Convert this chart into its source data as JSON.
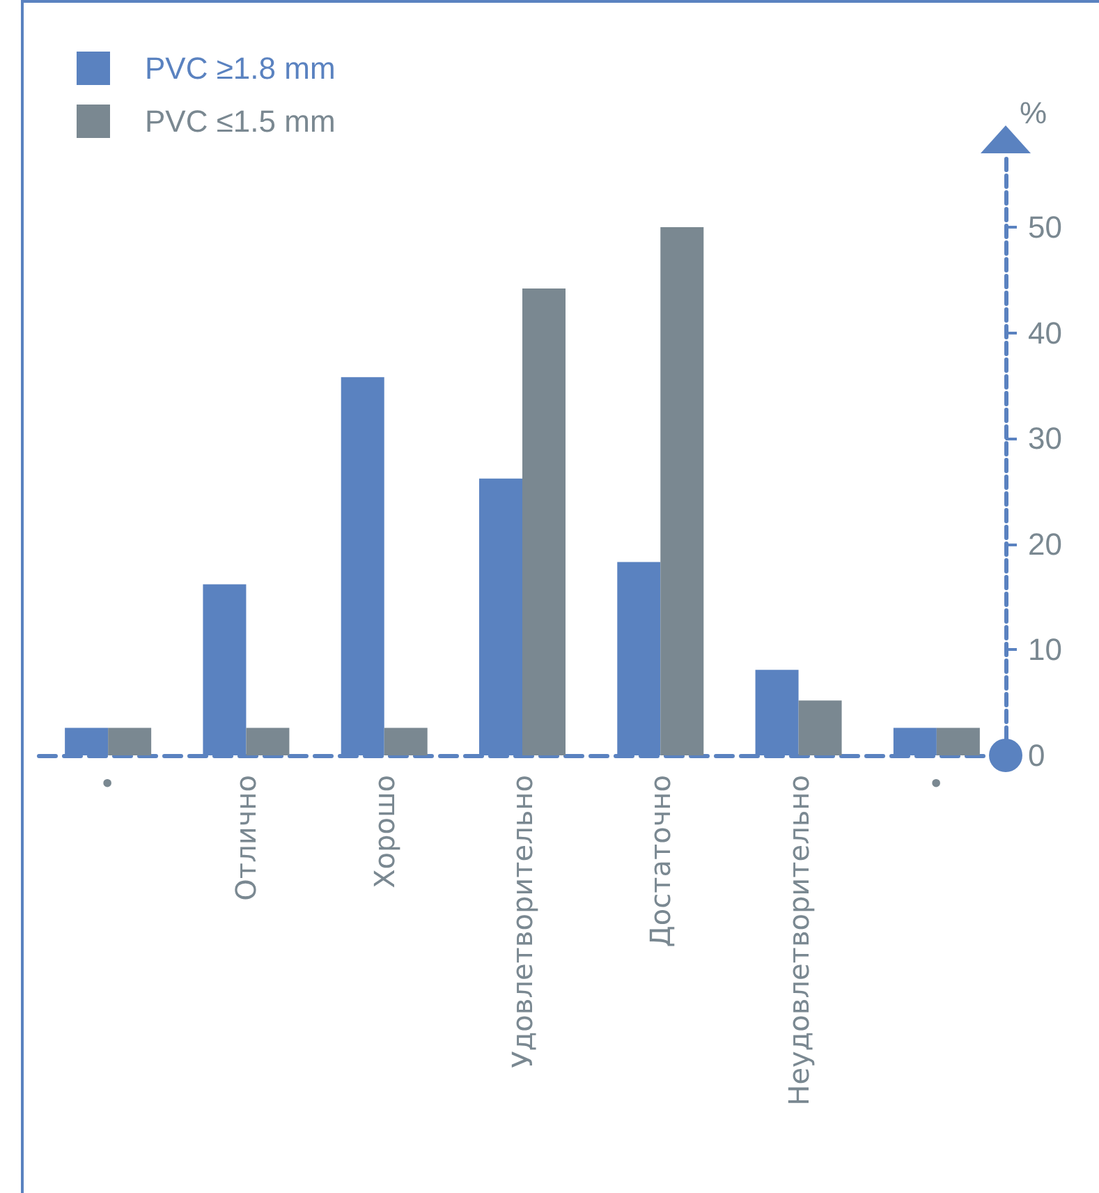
{
  "chart_data": {
    "type": "bar",
    "ylabel": "%",
    "categories": [
      "•",
      "Отлично",
      "Хорошо",
      "Удовлетворительно",
      "Достаточно",
      "Неудовлетворительно",
      "•"
    ],
    "series": [
      {
        "name": "PVC ≥1.8 mm",
        "color": "#5a82c0",
        "values": [
          2.6,
          16.2,
          35.8,
          26.2,
          18.3,
          8.1,
          2.6
        ]
      },
      {
        "name": "PVC ≤1.5 mm",
        "color": "#7a8891",
        "values": [
          2.6,
          2.6,
          2.6,
          44.2,
          50,
          5.2,
          2.6
        ]
      }
    ],
    "ylim": [
      0,
      57
    ],
    "yticks": [
      0,
      10,
      20,
      30,
      40,
      50
    ],
    "grid": false,
    "legend": "top left"
  }
}
